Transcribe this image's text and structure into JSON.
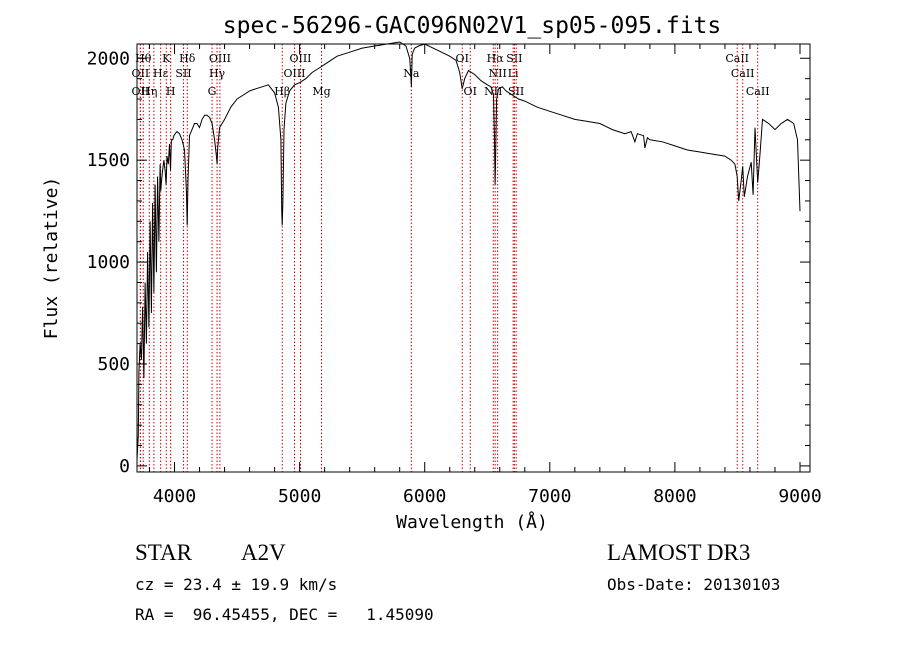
{
  "chart_data": {
    "type": "line",
    "title": "spec-56296-GAC096N02V1_sp05-095.fits",
    "xlabel": "Wavelength (Å)",
    "ylabel": "Flux (relative)",
    "xlim": [
      3700,
      9080
    ],
    "ylim": [
      -30,
      2070
    ],
    "xticks": [
      4000,
      5000,
      6000,
      7000,
      8000,
      9000
    ],
    "yticks": [
      0,
      500,
      1000,
      1500,
      2000
    ],
    "line_color": "#000000",
    "marker_color": "#cc0000",
    "series": [
      {
        "name": "flux",
        "x": [
          3700,
          3710,
          3715,
          3725,
          3735,
          3745,
          3755,
          3765,
          3775,
          3785,
          3795,
          3805,
          3815,
          3825,
          3835,
          3845,
          3855,
          3865,
          3875,
          3885,
          3890,
          3895,
          3905,
          3915,
          3925,
          3933,
          3940,
          3950,
          3960,
          3968,
          3975,
          3985,
          3995,
          4005,
          4020,
          4040,
          4060,
          4080,
          4095,
          4101,
          4108,
          4120,
          4140,
          4160,
          4180,
          4200,
          4220,
          4240,
          4260,
          4280,
          4300,
          4320,
          4335,
          4340,
          4345,
          4360,
          4380,
          4400,
          4450,
          4500,
          4550,
          4600,
          4650,
          4700,
          4750,
          4800,
          4830,
          4850,
          4857,
          4861,
          4866,
          4875,
          4890,
          4920,
          4960,
          5000,
          5050,
          5100,
          5150,
          5200,
          5250,
          5300,
          5400,
          5500,
          5600,
          5700,
          5800,
          5850,
          5880,
          5890,
          5893,
          5896,
          5900,
          5920,
          5950,
          6000,
          6100,
          6200,
          6250,
          6280,
          6300,
          6320,
          6350,
          6400,
          6450,
          6500,
          6530,
          6550,
          6558,
          6563,
          6568,
          6575,
          6590,
          6620,
          6650,
          6700,
          6750,
          6800,
          6900,
          7000,
          7100,
          7200,
          7300,
          7400,
          7500,
          7600,
          7650,
          7680,
          7700,
          7750,
          7760,
          7780,
          7800,
          7900,
          8000,
          8100,
          8200,
          8300,
          8400,
          8450,
          8480,
          8498,
          8510,
          8530,
          8542,
          8555,
          8580,
          8610,
          8625,
          8640,
          8662,
          8680,
          8700,
          8750,
          8800,
          8850,
          8900,
          8950,
          8980,
          9000
        ],
        "values": [
          30,
          150,
          460,
          600,
          520,
          780,
          430,
          900,
          600,
          1050,
          680,
          1200,
          750,
          1290,
          850,
          1380,
          950,
          1420,
          1100,
          1480,
          1350,
          1390,
          1450,
          1500,
          1450,
          1380,
          1520,
          1480,
          1580,
          1450,
          1600,
          1600,
          1620,
          1630,
          1640,
          1630,
          1600,
          1550,
          1350,
          1180,
          1400,
          1620,
          1650,
          1680,
          1680,
          1660,
          1700,
          1720,
          1720,
          1710,
          1680,
          1600,
          1520,
          1480,
          1560,
          1660,
          1680,
          1700,
          1760,
          1800,
          1820,
          1840,
          1850,
          1860,
          1870,
          1830,
          1760,
          1600,
          1260,
          1180,
          1300,
          1650,
          1780,
          1840,
          1870,
          1880,
          1900,
          1930,
          1950,
          1970,
          1990,
          2010,
          2030,
          2050,
          2060,
          2070,
          2080,
          2060,
          2000,
          1900,
          1860,
          1920,
          2020,
          2050,
          2060,
          2070,
          2040,
          2010,
          1990,
          1930,
          1850,
          1900,
          1940,
          1920,
          1890,
          1870,
          1860,
          1820,
          1600,
          1380,
          1560,
          1800,
          1850,
          1860,
          1840,
          1820,
          1800,
          1790,
          1760,
          1740,
          1720,
          1700,
          1690,
          1680,
          1650,
          1630,
          1640,
          1590,
          1630,
          1620,
          1560,
          1610,
          1600,
          1590,
          1570,
          1550,
          1540,
          1530,
          1520,
          1500,
          1480,
          1420,
          1300,
          1400,
          1470,
          1320,
          1420,
          1490,
          1330,
          1660,
          1390,
          1530,
          1700,
          1680,
          1650,
          1680,
          1700,
          1680,
          1600,
          1250
        ]
      }
    ],
    "line_markers": [
      {
        "x": 3750,
        "label": "Hθ",
        "row": 1
      },
      {
        "x": 3727,
        "label": "OII",
        "row": 2
      },
      {
        "x": 3727,
        "label": "OII",
        "row": 3
      },
      {
        "x": 3798,
        "label": "Hη",
        "row": 3
      },
      {
        "x": 3835,
        "label": "",
        "row": 0
      },
      {
        "x": 3889,
        "label": "Hε",
        "row": 2
      },
      {
        "x": 3934,
        "label": "K",
        "row": 1
      },
      {
        "x": 3969,
        "label": "H",
        "row": 3
      },
      {
        "x": 4072,
        "label": "SII",
        "row": 2
      },
      {
        "x": 4102,
        "label": "Hδ",
        "row": 1
      },
      {
        "x": 4300,
        "label": "G",
        "row": 3
      },
      {
        "x": 4340,
        "label": "Hγ",
        "row": 2
      },
      {
        "x": 4363,
        "label": "OIII",
        "row": 1
      },
      {
        "x": 4861,
        "label": "Hβ",
        "row": 3
      },
      {
        "x": 4959,
        "label": "OIII",
        "row": 2
      },
      {
        "x": 5007,
        "label": "OIII",
        "row": 1
      },
      {
        "x": 5175,
        "label": "Mg",
        "row": 3
      },
      {
        "x": 5893,
        "label": "Na",
        "row": 2
      },
      {
        "x": 6300,
        "label": "OI",
        "row": 1
      },
      {
        "x": 6364,
        "label": "OI",
        "row": 3
      },
      {
        "x": 6548,
        "label": "NII",
        "row": 3
      },
      {
        "x": 6563,
        "label": "Hα",
        "row": 1
      },
      {
        "x": 6583,
        "label": "NII",
        "row": 2
      },
      {
        "x": 6707,
        "label": "Li",
        "row": 2
      },
      {
        "x": 6717,
        "label": "SII",
        "row": 1
      },
      {
        "x": 6731,
        "label": "SII",
        "row": 3
      },
      {
        "x": 8498,
        "label": "CaII",
        "row": 1
      },
      {
        "x": 8542,
        "label": "CaII",
        "row": 2
      },
      {
        "x": 8662,
        "label": "CaII",
        "row": 3
      }
    ]
  },
  "info": {
    "object_class": "STAR",
    "subclass": "A2V",
    "survey": "LAMOST DR3",
    "cz": "cz = 23.4 ± 19.9 km/s",
    "obs_date": "Obs-Date: 20130103",
    "coords": "RA =  96.45455, DEC =   1.45090"
  }
}
